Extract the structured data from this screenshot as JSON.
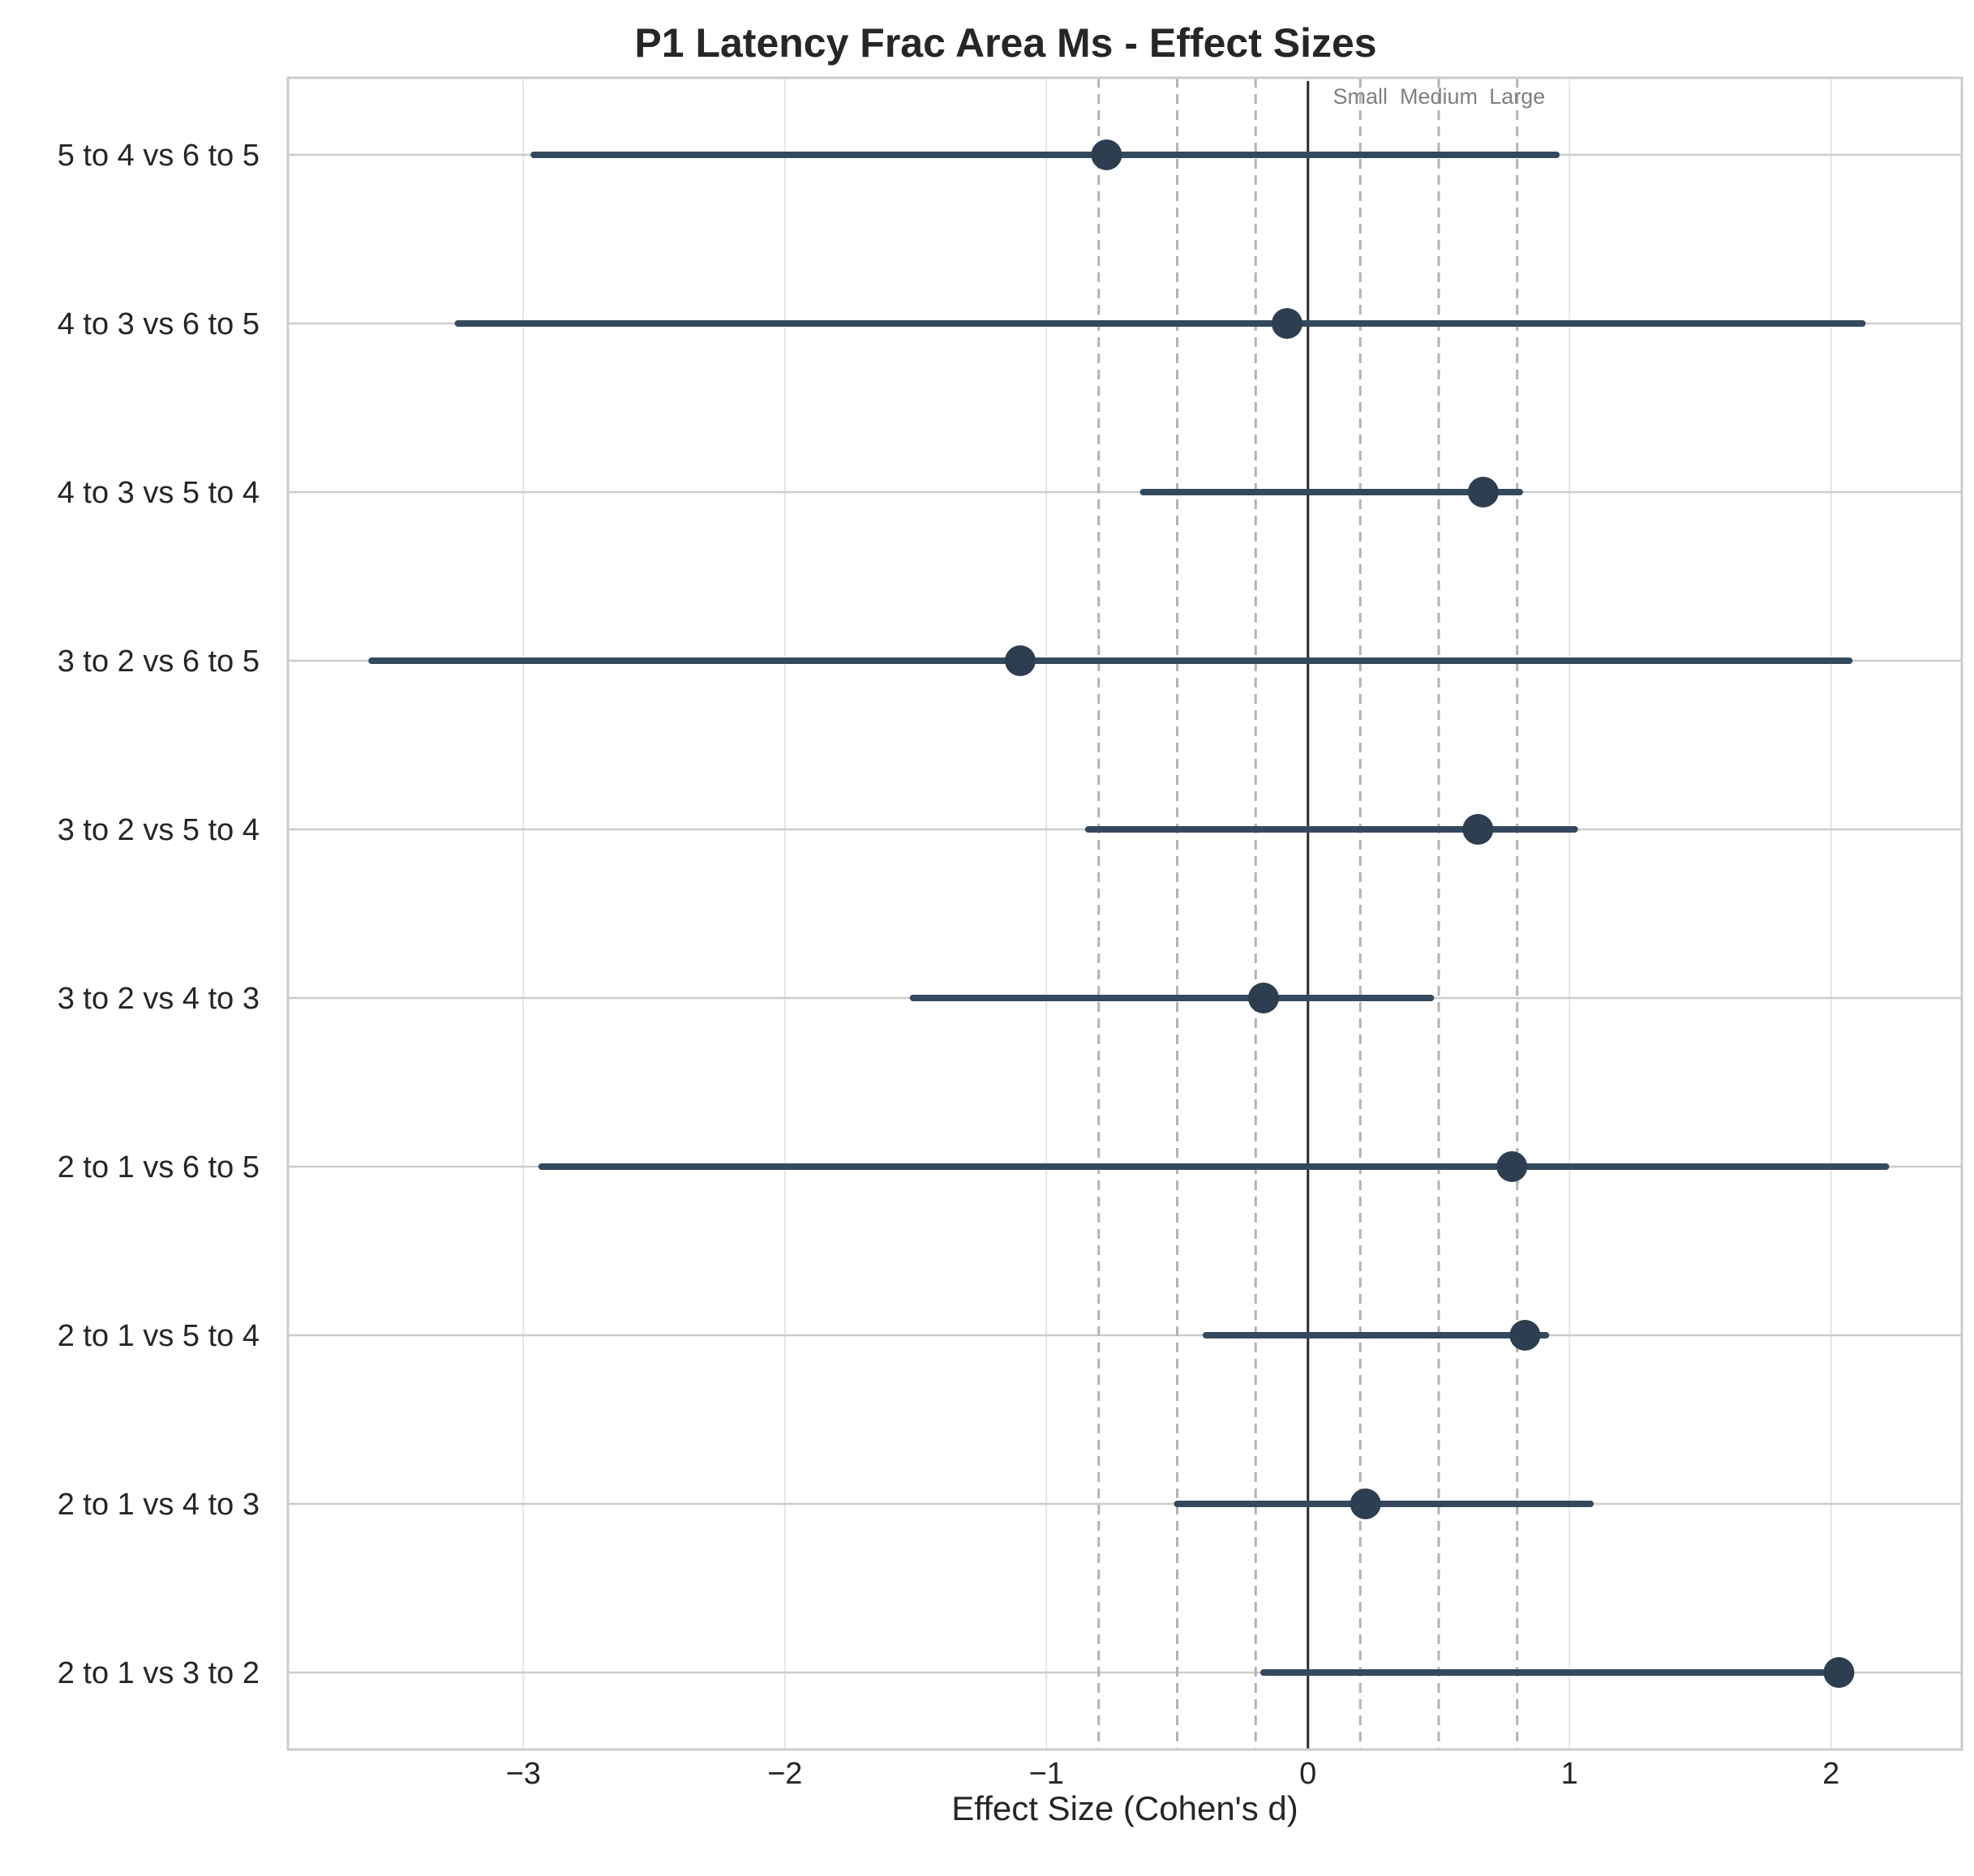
{
  "chart_data": {
    "type": "forest",
    "title": "P1 Latency Frac Area Ms - Effect Sizes",
    "xlabel": "Effect Size (Cohen's d)",
    "ylabel": "",
    "xlim": [
      -3.9,
      2.5
    ],
    "xticks": [
      -3,
      -2,
      -1,
      0,
      1,
      2
    ],
    "xtick_labels": [
      "−3",
      "−2",
      "−1",
      "0",
      "1",
      "2"
    ],
    "grid": true,
    "color": "#2c3e50",
    "reference_lines": {
      "zero": 0,
      "thresholds": [
        -0.8,
        -0.5,
        -0.2,
        0.2,
        0.5,
        0.8
      ],
      "labels": [
        {
          "text": "Small",
          "x": 0.2
        },
        {
          "text": "Medium",
          "x": 0.5
        },
        {
          "text": "Large",
          "x": 0.8
        }
      ]
    },
    "rows": [
      {
        "label": "5 to 4 vs 6 to 5",
        "d": -0.77,
        "ci_low": -2.96,
        "ci_high": 0.95
      },
      {
        "label": "4 to 3 vs 6 to 5",
        "d": -0.08,
        "ci_low": -3.25,
        "ci_high": 2.12
      },
      {
        "label": "4 to 3 vs 5 to 4",
        "d": 0.67,
        "ci_low": -0.63,
        "ci_high": 0.81
      },
      {
        "label": "3 to 2 vs 6 to 5",
        "d": -1.1,
        "ci_low": -3.58,
        "ci_high": 2.07
      },
      {
        "label": "3 to 2 vs 5 to 4",
        "d": 0.65,
        "ci_low": -0.84,
        "ci_high": 1.02
      },
      {
        "label": "3 to 2 vs 4 to 3",
        "d": -0.17,
        "ci_low": -1.51,
        "ci_high": 0.47
      },
      {
        "label": "2 to 1 vs 6 to 5",
        "d": 0.78,
        "ci_low": -2.93,
        "ci_high": 2.21
      },
      {
        "label": "2 to 1 vs 5 to 4",
        "d": 0.83,
        "ci_low": -0.39,
        "ci_high": 0.91
      },
      {
        "label": "2 to 1 vs 4 to 3",
        "d": 0.22,
        "ci_low": -0.5,
        "ci_high": 1.08
      },
      {
        "label": "2 to 1 vs 3 to 2",
        "d": 2.03,
        "ci_low": -0.17,
        "ci_high": 2.03
      }
    ]
  }
}
